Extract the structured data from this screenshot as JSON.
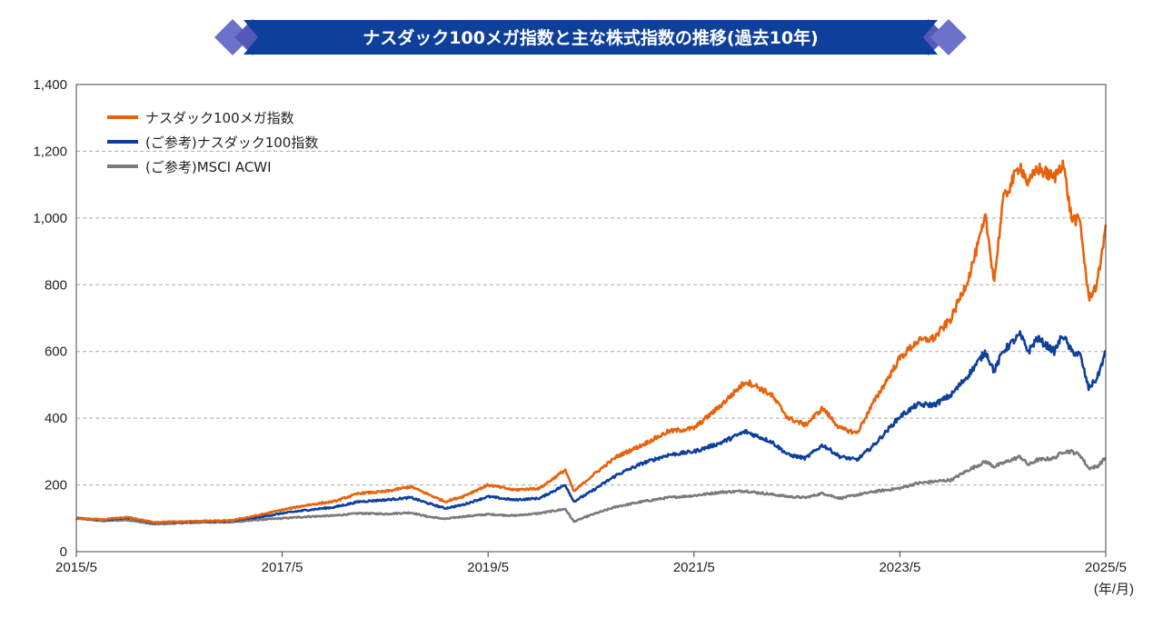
{
  "chart_data": {
    "type": "line",
    "title": "ナスダック100メガ指数と主な株式指数の推移(過去10年)",
    "x_unit_label": "(年/月)",
    "x_ticks": [
      "2015/5",
      "2017/5",
      "2019/5",
      "2021/5",
      "2023/5",
      "2025/5"
    ],
    "y_ticks": [
      "0",
      "200",
      "400",
      "600",
      "800",
      "1,000",
      "1,200",
      "1,400"
    ],
    "ylim": [
      0,
      1400
    ],
    "grid": "horizontal-dashed",
    "legend_position": "top-left",
    "x_dates": [
      "2015-05",
      "2015-08",
      "2015-11",
      "2016-02",
      "2016-05",
      "2016-08",
      "2016-11",
      "2017-02",
      "2017-05",
      "2017-08",
      "2017-11",
      "2018-02",
      "2018-05",
      "2018-08",
      "2018-10",
      "2018-12",
      "2019-02",
      "2019-05",
      "2019-08",
      "2019-11",
      "2020-02",
      "2020-03",
      "2020-05",
      "2020-08",
      "2020-11",
      "2021-02",
      "2021-05",
      "2021-08",
      "2021-11",
      "2021-12",
      "2022-02",
      "2022-04",
      "2022-06",
      "2022-08",
      "2022-10",
      "2022-12",
      "2023-02",
      "2023-05",
      "2023-07",
      "2023-09",
      "2023-11",
      "2024-01",
      "2024-03",
      "2024-04",
      "2024-05",
      "2024-07",
      "2024-08",
      "2024-09",
      "2024-11",
      "2024-12",
      "2025-01",
      "2025-02",
      "2025-03",
      "2025-04",
      "2025-05"
    ],
    "series": [
      {
        "name": "ナスダック100メガ指数",
        "color": "#e8620c",
        "values": [
          100,
          96,
          103,
          88,
          90,
          92,
          93,
          108,
          125,
          140,
          150,
          175,
          180,
          195,
          172,
          150,
          165,
          200,
          185,
          190,
          245,
          180,
          225,
          285,
          320,
          360,
          370,
          435,
          510,
          500,
          470,
          400,
          380,
          430,
          370,
          355,
          450,
          580,
          630,
          640,
          700,
          820,
          1000,
          810,
          1050,
          1160,
          1100,
          1150,
          1120,
          1170,
          1000,
          990,
          760,
          800,
          980
        ]
      },
      {
        "name": "(ご参考)ナスダック100指数",
        "color": "#0d3f9b",
        "values": [
          100,
          95,
          102,
          87,
          89,
          91,
          92,
          102,
          115,
          125,
          133,
          150,
          155,
          162,
          145,
          130,
          140,
          165,
          155,
          160,
          200,
          150,
          180,
          230,
          265,
          290,
          300,
          325,
          360,
          350,
          330,
          290,
          280,
          320,
          285,
          275,
          320,
          405,
          440,
          440,
          470,
          530,
          600,
          540,
          600,
          650,
          600,
          640,
          600,
          650,
          600,
          590,
          490,
          520,
          600
        ]
      },
      {
        "name": "(ご参考)MSCI ACWI",
        "color": "#7a7a7a",
        "values": [
          100,
          92,
          95,
          82,
          85,
          88,
          88,
          95,
          100,
          105,
          108,
          115,
          113,
          117,
          105,
          98,
          105,
          112,
          108,
          115,
          128,
          90,
          110,
          135,
          150,
          162,
          168,
          178,
          182,
          178,
          172,
          165,
          162,
          175,
          160,
          170,
          180,
          190,
          205,
          210,
          215,
          245,
          270,
          255,
          265,
          285,
          260,
          275,
          280,
          300,
          300,
          290,
          250,
          255,
          282
        ]
      }
    ]
  }
}
